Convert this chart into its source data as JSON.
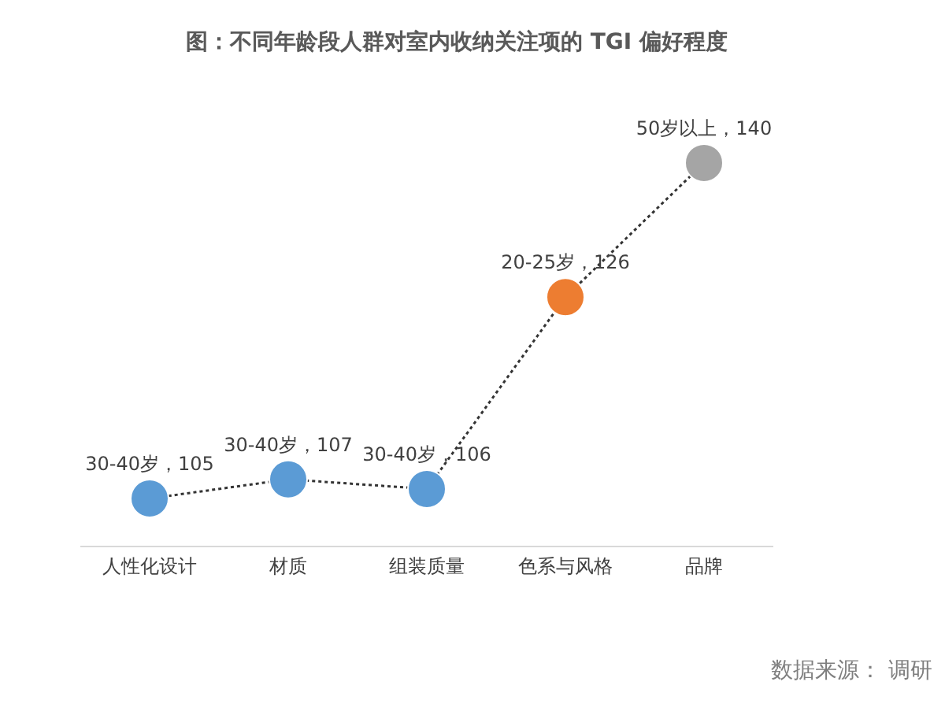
{
  "chart_data": {
    "type": "line",
    "title": "图：不同年龄段人群对室内收纳关注项的 TGI 偏好程度",
    "categories": [
      "人性化设计",
      "材质",
      "组装质量",
      "色系与风格",
      "品牌"
    ],
    "series": [
      {
        "values": [
          105,
          107,
          106,
          126,
          140
        ],
        "colors": [
          "#5b9bd5",
          "#5b9bd5",
          "#5b9bd5",
          "#ed7d31",
          "#a5a5a5"
        ],
        "color": "#333333",
        "value_labels": [
          "30-40岁，105",
          "30-40岁，107",
          "30-40岁，106",
          "20-25岁，126",
          "50岁以上，140"
        ]
      }
    ],
    "line_style": "dotted",
    "marker": "circle",
    "annotations": [
      "数据来源： 调研"
    ]
  }
}
